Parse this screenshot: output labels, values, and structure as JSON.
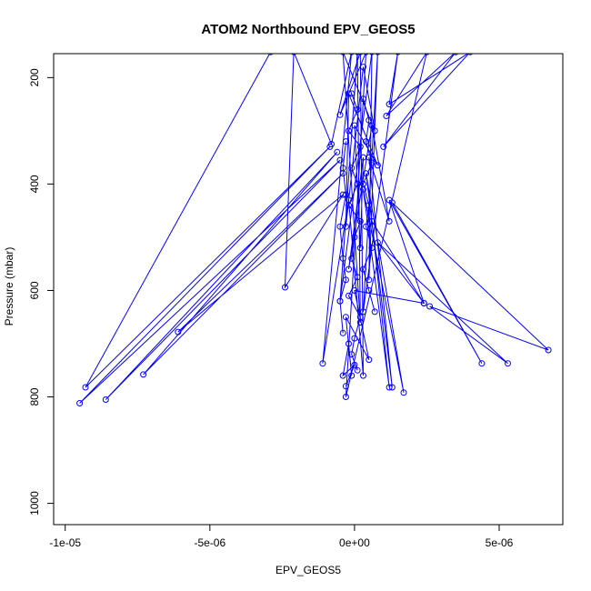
{
  "chart_data": {
    "type": "line",
    "title": "ATOM2 Northbound EPV_GEOS5",
    "xlabel": "EPV_GEOS5",
    "ylabel": "Pressure (mbar)",
    "xlim": [
      -1.04e-05,
      7.2e-06
    ],
    "ylim": [
      1040,
      155
    ],
    "y_reversed": true,
    "x_ticks": [
      -1e-05,
      -5e-06,
      0,
      5e-06
    ],
    "x_tick_labels": [
      "-1e-05",
      "-5e-06",
      "0e+00",
      "5e-06"
    ],
    "y_ticks": [
      200,
      400,
      600,
      800,
      1000
    ],
    "y_tick_labels": [
      "200",
      "400",
      "600",
      "800",
      "1000"
    ],
    "line_color": "#0000ff",
    "grid": false,
    "legend": "none",
    "series": [
      {
        "points": [
          {
            "x": -2.9e-06,
            "y": 152
          },
          {
            "x": -9.3e-06,
            "y": 782
          },
          {
            "x": -8.5e-07,
            "y": 330
          },
          {
            "x": -9.5e-06,
            "y": 812
          },
          {
            "x": -5e-07,
            "y": 355
          },
          {
            "x": -8.6e-06,
            "y": 805
          },
          {
            "x": -6e-07,
            "y": 340
          },
          {
            "x": -7.3e-06,
            "y": 758
          },
          {
            "x": -4e-07,
            "y": 380
          },
          {
            "x": -6.1e-06,
            "y": 678
          },
          {
            "x": -4e-07,
            "y": 420
          },
          {
            "x": -2.4e-06,
            "y": 594
          },
          {
            "x": -2.1e-06,
            "y": 152
          },
          {
            "x": -8e-07,
            "y": 325
          },
          {
            "x": -1e-07,
            "y": 152
          },
          {
            "x": -1.1e-06,
            "y": 737
          },
          {
            "x": -2e-07,
            "y": 430
          },
          {
            "x": 3e-07,
            "y": 760
          },
          {
            "x": 2e-07,
            "y": 152
          },
          {
            "x": -5e-07,
            "y": 270
          },
          {
            "x": 4e-07,
            "y": 152
          },
          {
            "x": -3e-07,
            "y": 800
          },
          {
            "x": 2.5e-06,
            "y": 152
          },
          {
            "x": 1.1e-06,
            "y": 272
          },
          {
            "x": 3.5e-06,
            "y": 152
          },
          {
            "x": 1e-06,
            "y": 330
          },
          {
            "x": 4e-06,
            "y": 152
          },
          {
            "x": 1.2e-06,
            "y": 250
          },
          {
            "x": 1.5e-06,
            "y": 152
          },
          {
            "x": 3e-07,
            "y": 640
          },
          {
            "x": 8e-07,
            "y": 152
          },
          {
            "x": 5e-07,
            "y": 580
          },
          {
            "x": 6e-07,
            "y": 152
          },
          {
            "x": -5e-07,
            "y": 620
          },
          {
            "x": 1e-07,
            "y": 152
          },
          {
            "x": 2e-07,
            "y": 660
          },
          {
            "x": -4e-07,
            "y": 152
          },
          {
            "x": 7e-07,
            "y": 300
          },
          {
            "x": 3e-07,
            "y": 180
          },
          {
            "x": -3e-07,
            "y": 480
          },
          {
            "x": -2e-07,
            "y": 230
          },
          {
            "x": 8e-07,
            "y": 365
          },
          {
            "x": 0.0,
            "y": 290
          },
          {
            "x": 2e-07,
            "y": 520
          },
          {
            "x": 3e-07,
            "y": 350
          },
          {
            "x": -2e-07,
            "y": 560
          },
          {
            "x": 6e-07,
            "y": 290
          },
          {
            "x": 1.2e-06,
            "y": 470
          },
          {
            "x": 5e-07,
            "y": 350
          },
          {
            "x": 1.3e-06,
            "y": 782
          },
          {
            "x": 4e-07,
            "y": 380
          },
          {
            "x": 1.7e-06,
            "y": 792
          },
          {
            "x": 3e-07,
            "y": 410
          },
          {
            "x": 1.2e-06,
            "y": 782
          },
          {
            "x": 6e-07,
            "y": 470
          },
          {
            "x": 2.4e-06,
            "y": 624
          },
          {
            "x": 1.2e-06,
            "y": 430
          },
          {
            "x": 4.4e-06,
            "y": 737
          },
          {
            "x": 1.3e-06,
            "y": 435
          },
          {
            "x": 6.7e-06,
            "y": 712
          },
          {
            "x": 2.6e-06,
            "y": 630
          },
          {
            "x": 5.3e-06,
            "y": 737
          },
          {
            "x": 8e-07,
            "y": 510
          },
          {
            "x": 2.4e-06,
            "y": 624
          },
          {
            "x": 0.0,
            "y": 600
          },
          {
            "x": 5e-07,
            "y": 730
          },
          {
            "x": -3e-07,
            "y": 650
          },
          {
            "x": -1e-07,
            "y": 760
          },
          {
            "x": -2e-07,
            "y": 700
          },
          {
            "x": -4e-07,
            "y": 760
          },
          {
            "x": 0.0,
            "y": 740
          },
          {
            "x": -3e-07,
            "y": 780
          }
        ]
      },
      {
        "points": [
          {
            "x": -1e-07,
            "y": 230
          },
          {
            "x": 1e-07,
            "y": 260
          },
          {
            "x": -2e-07,
            "y": 300
          },
          {
            "x": 2e-07,
            "y": 330
          },
          {
            "x": -1e-07,
            "y": 370
          },
          {
            "x": 1e-07,
            "y": 400
          },
          {
            "x": -2e-07,
            "y": 440
          },
          {
            "x": 2e-07,
            "y": 470
          },
          {
            "x": 0.0,
            "y": 500
          },
          {
            "x": -1e-07,
            "y": 540
          },
          {
            "x": 1e-07,
            "y": 575
          },
          {
            "x": -2e-07,
            "y": 610
          },
          {
            "x": 2e-07,
            "y": 650
          },
          {
            "x": 0.0,
            "y": 690
          },
          {
            "x": -1e-07,
            "y": 720
          },
          {
            "x": 1e-07,
            "y": 750
          }
        ]
      },
      {
        "points": [
          {
            "x": 3e-07,
            "y": 240
          },
          {
            "x": 5e-07,
            "y": 280
          },
          {
            "x": 4e-07,
            "y": 320
          },
          {
            "x": 6e-07,
            "y": 360
          },
          {
            "x": 3e-07,
            "y": 400
          },
          {
            "x": 5e-07,
            "y": 440
          },
          {
            "x": 4e-07,
            "y": 480
          },
          {
            "x": 6e-07,
            "y": 520
          },
          {
            "x": 3e-07,
            "y": 560
          },
          {
            "x": 5e-07,
            "y": 600
          },
          {
            "x": 7e-07,
            "y": 640
          }
        ]
      },
      {
        "points": [
          {
            "x": -3e-07,
            "y": 320
          },
          {
            "x": -4e-07,
            "y": 370
          },
          {
            "x": -3e-07,
            "y": 420
          },
          {
            "x": -5e-07,
            "y": 480
          },
          {
            "x": -4e-07,
            "y": 540
          },
          {
            "x": -3e-07,
            "y": 580
          },
          {
            "x": -5e-07,
            "y": 620
          },
          {
            "x": -4e-07,
            "y": 680
          }
        ]
      }
    ]
  }
}
